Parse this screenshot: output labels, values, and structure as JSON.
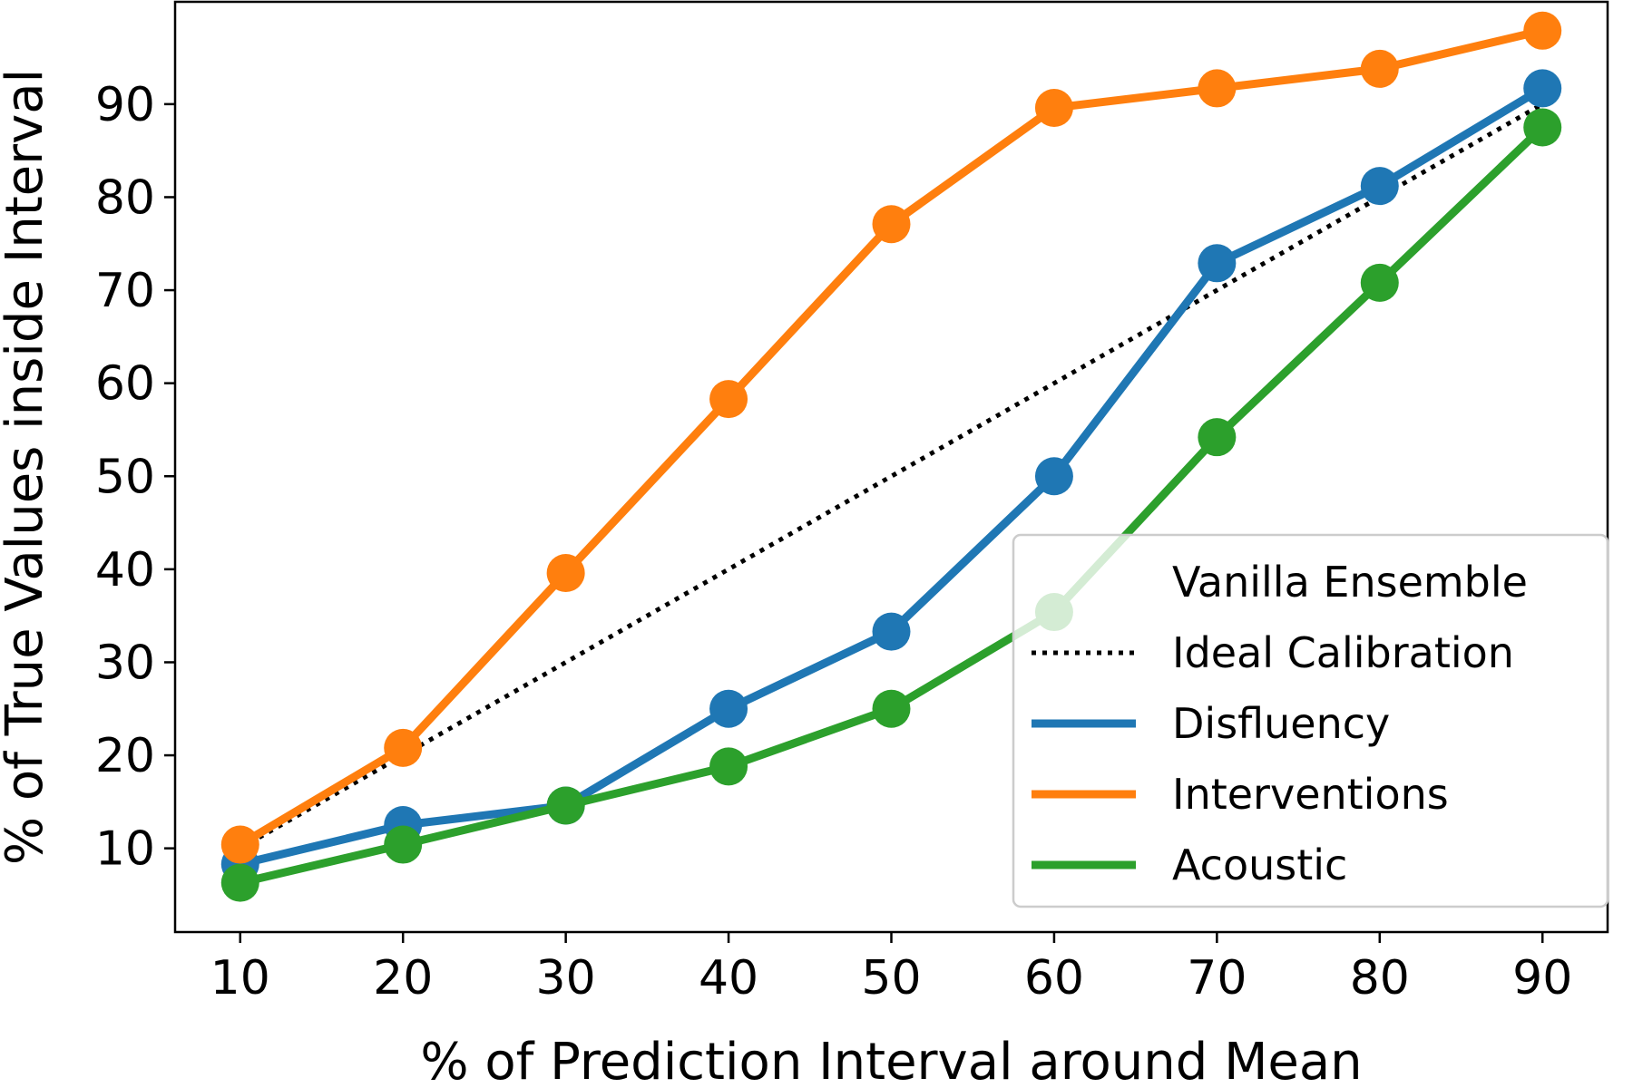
{
  "chart_data": {
    "type": "line",
    "xlabel": "% of Prediction Interval around Mean",
    "ylabel": "% of True Values inside Interval",
    "x": [
      10,
      20,
      30,
      40,
      50,
      60,
      70,
      80,
      90
    ],
    "xticks": [
      10,
      20,
      30,
      40,
      50,
      60,
      70,
      80,
      90
    ],
    "yticks": [
      10,
      20,
      30,
      40,
      50,
      60,
      70,
      80,
      90
    ],
    "xlim": [
      6,
      94
    ],
    "ylim": [
      1,
      101
    ],
    "grid": false,
    "legend_placement": "lower-right",
    "legend_title": "Vanilla Ensemble",
    "ideal": {
      "name": "Ideal Calibration",
      "x": [
        10,
        90
      ],
      "y": [
        10,
        90
      ],
      "color": "#000000",
      "style": "dotted"
    },
    "series": [
      {
        "name": "Disfluency",
        "color": "#1f77b4",
        "values": [
          8.3,
          12.5,
          14.6,
          25.0,
          33.3,
          50.0,
          72.9,
          81.2,
          91.7
        ]
      },
      {
        "name": "Interventions",
        "color": "#ff7f0e",
        "values": [
          10.4,
          20.8,
          39.6,
          58.3,
          77.1,
          89.6,
          91.7,
          93.8,
          97.9
        ]
      },
      {
        "name": "Acoustic",
        "color": "#2ca02c",
        "values": [
          6.3,
          10.4,
          14.6,
          18.8,
          25.0,
          35.4,
          54.2,
          70.8,
          87.5
        ]
      }
    ]
  }
}
